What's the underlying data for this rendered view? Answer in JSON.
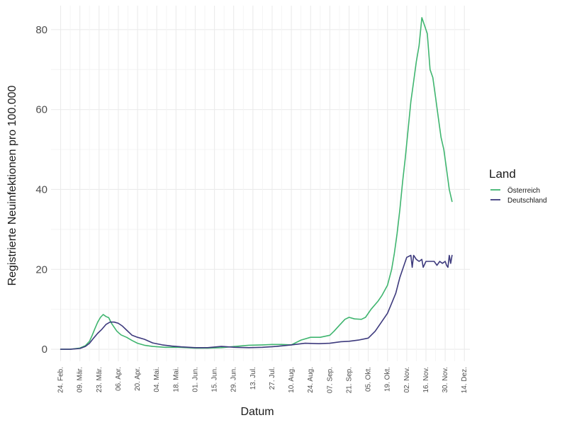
{
  "chart_data": {
    "type": "line",
    "xlabel": "Datum",
    "ylabel": "Registrierte Neuinfektionen pro 100.000",
    "legend_title": "Land",
    "legend_position": "right",
    "grid": true,
    "ylim": [
      -3,
      86
    ],
    "y_ticks": [
      0,
      20,
      40,
      60,
      80
    ],
    "x_tick_labels": [
      "24. Feb.",
      "09. Mär.",
      "23. Mär.",
      "06. Apr.",
      "20. Apr.",
      "04. Mai.",
      "18. Mai.",
      "01. Jun.",
      "15. Jun.",
      "29. Jun.",
      "13. Jul.",
      "27. Jul.",
      "10. Aug.",
      "24. Aug.",
      "07. Sep.",
      "21. Sep.",
      "05. Okt.",
      "19. Okt.",
      "02. Nov.",
      "16. Nov.",
      "30. Nov.",
      "14. Dez."
    ],
    "x_tick_dates": [
      "2020-02-24",
      "2020-03-09",
      "2020-03-23",
      "2020-04-06",
      "2020-04-20",
      "2020-05-04",
      "2020-05-18",
      "2020-06-01",
      "2020-06-15",
      "2020-06-29",
      "2020-07-13",
      "2020-07-27",
      "2020-08-10",
      "2020-08-24",
      "2020-09-07",
      "2020-09-21",
      "2020-10-05",
      "2020-10-19",
      "2020-11-02",
      "2020-11-16",
      "2020-11-30",
      "2020-12-14"
    ],
    "xlim": [
      "2020-02-17",
      "2020-12-18"
    ],
    "series": [
      {
        "name": "Österreich",
        "color": "#3fb56f",
        "points": [
          [
            "2020-02-24",
            0
          ],
          [
            "2020-03-02",
            0
          ],
          [
            "2020-03-09",
            0.3
          ],
          [
            "2020-03-13",
            0.9
          ],
          [
            "2020-03-16",
            2
          ],
          [
            "2020-03-18",
            3.5
          ],
          [
            "2020-03-20",
            5.2
          ],
          [
            "2020-03-22",
            6.8
          ],
          [
            "2020-03-24",
            8
          ],
          [
            "2020-03-26",
            8.7
          ],
          [
            "2020-03-28",
            8.2
          ],
          [
            "2020-03-30",
            7.9
          ],
          [
            "2020-04-01",
            6.5
          ],
          [
            "2020-04-03",
            5.5
          ],
          [
            "2020-04-05",
            4.5
          ],
          [
            "2020-04-08",
            3.6
          ],
          [
            "2020-04-12",
            3.0
          ],
          [
            "2020-04-16",
            2.2
          ],
          [
            "2020-04-20",
            1.5
          ],
          [
            "2020-04-25",
            1.0
          ],
          [
            "2020-05-01",
            0.7
          ],
          [
            "2020-05-10",
            0.5
          ],
          [
            "2020-05-20",
            0.5
          ],
          [
            "2020-06-01",
            0.3
          ],
          [
            "2020-06-10",
            0.3
          ],
          [
            "2020-06-20",
            0.4
          ],
          [
            "2020-06-30",
            0.7
          ],
          [
            "2020-07-10",
            1.0
          ],
          [
            "2020-07-20",
            1.1
          ],
          [
            "2020-07-27",
            1.2
          ],
          [
            "2020-08-03",
            1.2
          ],
          [
            "2020-08-10",
            1.1
          ],
          [
            "2020-08-17",
            2.3
          ],
          [
            "2020-08-24",
            3.0
          ],
          [
            "2020-08-31",
            3.0
          ],
          [
            "2020-09-07",
            3.5
          ],
          [
            "2020-09-10",
            4.5
          ],
          [
            "2020-09-14",
            6.0
          ],
          [
            "2020-09-18",
            7.5
          ],
          [
            "2020-09-21",
            8.0
          ],
          [
            "2020-09-25",
            7.6
          ],
          [
            "2020-09-30",
            7.5
          ],
          [
            "2020-10-03",
            8.0
          ],
          [
            "2020-10-07",
            10.0
          ],
          [
            "2020-10-12",
            12.0
          ],
          [
            "2020-10-15",
            13.5
          ],
          [
            "2020-10-19",
            16.0
          ],
          [
            "2020-10-22",
            20.0
          ],
          [
            "2020-10-24",
            24.0
          ],
          [
            "2020-10-26",
            29.0
          ],
          [
            "2020-10-28",
            35.0
          ],
          [
            "2020-10-30",
            42.0
          ],
          [
            "2020-11-01",
            48.0
          ],
          [
            "2020-11-03",
            55.0
          ],
          [
            "2020-11-05",
            62.0
          ],
          [
            "2020-11-07",
            67.0
          ],
          [
            "2020-11-09",
            72.0
          ],
          [
            "2020-11-11",
            76.0
          ],
          [
            "2020-11-13",
            83.0
          ],
          [
            "2020-11-15",
            81.0
          ],
          [
            "2020-11-17",
            79.0
          ],
          [
            "2020-11-19",
            70.0
          ],
          [
            "2020-11-21",
            68.0
          ],
          [
            "2020-11-23",
            63.0
          ],
          [
            "2020-11-25",
            58.0
          ],
          [
            "2020-11-27",
            53.0
          ],
          [
            "2020-11-29",
            50.0
          ],
          [
            "2020-12-01",
            45.0
          ],
          [
            "2020-12-03",
            40.0
          ],
          [
            "2020-12-05",
            37.0
          ]
        ]
      },
      {
        "name": "Deutschland",
        "color": "#3d3a7d",
        "points": [
          [
            "2020-02-24",
            0
          ],
          [
            "2020-03-02",
            0
          ],
          [
            "2020-03-09",
            0.2
          ],
          [
            "2020-03-13",
            0.7
          ],
          [
            "2020-03-16",
            1.5
          ],
          [
            "2020-03-19",
            2.8
          ],
          [
            "2020-03-22",
            4.0
          ],
          [
            "2020-03-25",
            5.0
          ],
          [
            "2020-03-28",
            6.2
          ],
          [
            "2020-03-31",
            6.8
          ],
          [
            "2020-04-03",
            6.8
          ],
          [
            "2020-04-06",
            6.5
          ],
          [
            "2020-04-09",
            5.8
          ],
          [
            "2020-04-12",
            4.8
          ],
          [
            "2020-04-16",
            3.5
          ],
          [
            "2020-04-20",
            3.0
          ],
          [
            "2020-04-25",
            2.5
          ],
          [
            "2020-05-01",
            1.6
          ],
          [
            "2020-05-08",
            1.1
          ],
          [
            "2020-05-15",
            0.8
          ],
          [
            "2020-05-22",
            0.6
          ],
          [
            "2020-06-01",
            0.4
          ],
          [
            "2020-06-10",
            0.4
          ],
          [
            "2020-06-20",
            0.7
          ],
          [
            "2020-06-30",
            0.5
          ],
          [
            "2020-07-10",
            0.4
          ],
          [
            "2020-07-20",
            0.5
          ],
          [
            "2020-07-30",
            0.7
          ],
          [
            "2020-08-10",
            1.1
          ],
          [
            "2020-08-20",
            1.5
          ],
          [
            "2020-08-30",
            1.4
          ],
          [
            "2020-09-07",
            1.5
          ],
          [
            "2020-09-15",
            1.9
          ],
          [
            "2020-09-21",
            2.0
          ],
          [
            "2020-09-28",
            2.3
          ],
          [
            "2020-10-05",
            2.8
          ],
          [
            "2020-10-10",
            4.5
          ],
          [
            "2020-10-15",
            7.0
          ],
          [
            "2020-10-19",
            9.0
          ],
          [
            "2020-10-22",
            11.5
          ],
          [
            "2020-10-25",
            14.0
          ],
          [
            "2020-10-28",
            18.0
          ],
          [
            "2020-10-31",
            21.0
          ],
          [
            "2020-11-02",
            23.0
          ],
          [
            "2020-11-05",
            23.5
          ],
          [
            "2020-11-06",
            20.5
          ],
          [
            "2020-11-07",
            23.5
          ],
          [
            "2020-11-09",
            22.5
          ],
          [
            "2020-11-11",
            22.0
          ],
          [
            "2020-11-13",
            22.5
          ],
          [
            "2020-11-14",
            20.5
          ],
          [
            "2020-11-16",
            22.0
          ],
          [
            "2020-11-19",
            22.0
          ],
          [
            "2020-11-22",
            22.0
          ],
          [
            "2020-11-24",
            21.0
          ],
          [
            "2020-11-26",
            22.0
          ],
          [
            "2020-11-28",
            21.5
          ],
          [
            "2020-11-30",
            22.0
          ],
          [
            "2020-12-01",
            21.0
          ],
          [
            "2020-12-02",
            20.5
          ],
          [
            "2020-12-03",
            23.5
          ],
          [
            "2020-12-04",
            21.5
          ],
          [
            "2020-12-05",
            23.5
          ]
        ]
      }
    ]
  }
}
